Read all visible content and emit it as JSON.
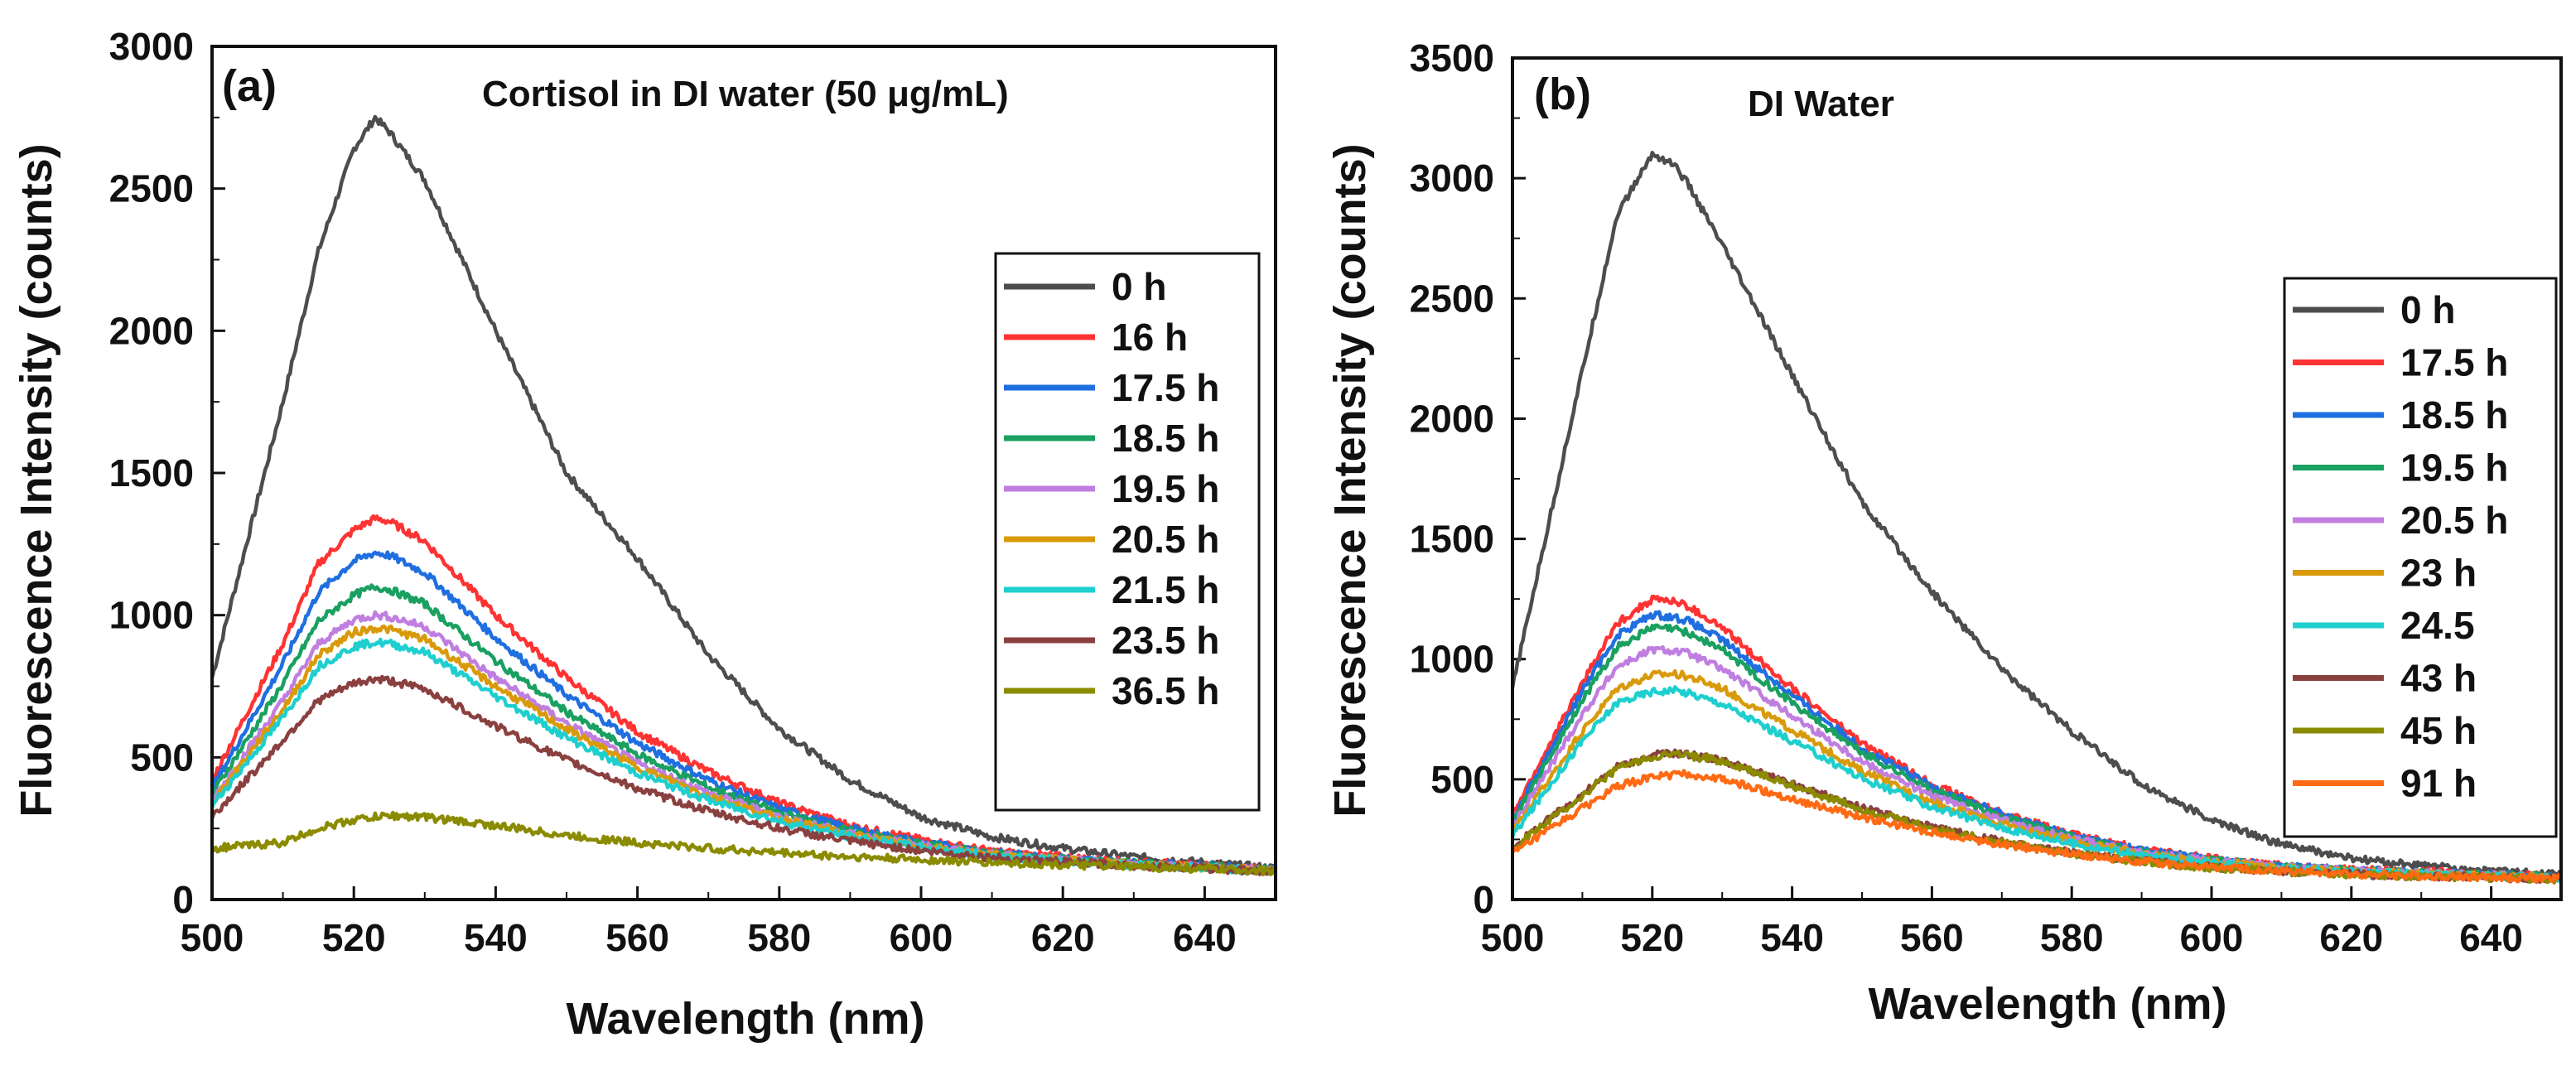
{
  "chart_data": [
    {
      "type": "line",
      "panel": "(a)",
      "title": "Cortisol in DI water (50 μg/mL)",
      "xlabel": "Wavelength (nm)",
      "ylabel": "Fluorescence Intensity (counts)",
      "xlim": [
        500,
        650
      ],
      "ylim": [
        0,
        3000
      ],
      "xticks": [
        500,
        520,
        540,
        560,
        580,
        600,
        620,
        640
      ],
      "yticks": [
        0,
        500,
        1000,
        1500,
        2000,
        2500,
        3000
      ],
      "x": [
        500,
        510,
        515,
        520,
        523,
        525,
        530,
        540,
        550,
        560,
        570,
        580,
        590,
        600,
        610,
        620,
        630,
        640,
        650
      ],
      "legend_position": "right",
      "series": [
        {
          "name": "0 h",
          "color": "#4d4d4d",
          "values": [
            780,
            1750,
            2280,
            2640,
            2750,
            2700,
            2530,
            2000,
            1500,
            1200,
            860,
            600,
            420,
            290,
            220,
            180,
            150,
            130,
            110
          ]
        },
        {
          "name": "16 h",
          "color": "#ff3333",
          "values": [
            420,
            900,
            1180,
            1300,
            1340,
            1330,
            1260,
            1000,
            780,
            590,
            450,
            340,
            260,
            210,
            170,
            150,
            130,
            120,
            105
          ]
        },
        {
          "name": "17.5 h",
          "color": "#1f6fe0",
          "values": [
            390,
            830,
            1080,
            1190,
            1220,
            1210,
            1150,
            920,
            720,
            550,
            420,
            320,
            250,
            200,
            165,
            145,
            128,
            118,
            103
          ]
        },
        {
          "name": "18.5 h",
          "color": "#1aa060",
          "values": [
            370,
            760,
            980,
            1070,
            1100,
            1090,
            1040,
            840,
            660,
            510,
            395,
            305,
            240,
            195,
            162,
            142,
            126,
            116,
            102
          ]
        },
        {
          "name": "19.5 h",
          "color": "#c07fe0",
          "values": [
            350,
            700,
            900,
            985,
            1000,
            995,
            960,
            780,
            620,
            480,
            375,
            292,
            232,
            190,
            158,
            140,
            124,
            114,
            101
          ]
        },
        {
          "name": "20.5 h",
          "color": "#d99a0a",
          "values": [
            340,
            670,
            860,
            940,
            955,
            950,
            915,
            750,
            600,
            465,
            365,
            285,
            228,
            187,
            156,
            138,
            123,
            113,
            100
          ]
        },
        {
          "name": "21.5 h",
          "color": "#1fcfcf",
          "values": [
            330,
            640,
            820,
            890,
            905,
            900,
            870,
            715,
            570,
            445,
            350,
            275,
            222,
            183,
            154,
            136,
            122,
            112,
            100
          ]
        },
        {
          "name": "23.5 h",
          "color": "#8b4040",
          "values": [
            290,
            560,
            700,
            760,
            775,
            770,
            740,
            610,
            490,
            390,
            310,
            250,
            205,
            172,
            148,
            132,
            120,
            110,
            98
          ]
        },
        {
          "name": "36.5 h",
          "color": "#8b8b00",
          "values": [
            180,
            200,
            250,
            280,
            290,
            295,
            290,
            260,
            225,
            200,
            180,
            165,
            150,
            140,
            130,
            122,
            115,
            108,
            100
          ]
        }
      ]
    },
    {
      "type": "line",
      "panel": "(b)",
      "title": "DI Water",
      "xlabel": "Wavelength (nm)",
      "ylabel": "Fluorescence Intensity (counts)",
      "xlim": [
        500,
        650
      ],
      "ylim": [
        0,
        3500
      ],
      "xticks": [
        500,
        520,
        540,
        560,
        580,
        600,
        620,
        640
      ],
      "yticks": [
        0,
        500,
        1000,
        1500,
        2000,
        2500,
        3000,
        3500
      ],
      "x": [
        500,
        510,
        515,
        520,
        523,
        525,
        530,
        540,
        550,
        560,
        570,
        580,
        590,
        600,
        610,
        620,
        630,
        640,
        650
      ],
      "legend_position": "right",
      "series": [
        {
          "name": "0 h",
          "color": "#4d4d4d",
          "values": [
            880,
            2200,
            2850,
            3100,
            3060,
            2980,
            2720,
            2180,
            1650,
            1280,
            960,
            700,
            480,
            330,
            230,
            170,
            140,
            120,
            105
          ]
        },
        {
          "name": "17.5 h",
          "color": "#ff3333",
          "values": [
            350,
            900,
            1150,
            1250,
            1240,
            1220,
            1130,
            880,
            650,
            480,
            360,
            270,
            210,
            170,
            140,
            125,
            115,
            105,
            95
          ]
        },
        {
          "name": "18.5 h",
          "color": "#1f6fe0",
          "values": [
            330,
            870,
            1100,
            1185,
            1175,
            1160,
            1080,
            850,
            630,
            470,
            355,
            265,
            205,
            165,
            138,
            122,
            112,
            103,
            93
          ]
        },
        {
          "name": "19.5 h",
          "color": "#1aa060",
          "values": [
            320,
            830,
            1050,
            1130,
            1125,
            1110,
            1040,
            820,
            610,
            455,
            345,
            260,
            200,
            162,
            136,
            120,
            110,
            101,
            92
          ]
        },
        {
          "name": "20.5 h",
          "color": "#c07fe0",
          "values": [
            300,
            770,
            970,
            1040,
            1035,
            1025,
            960,
            765,
            575,
            430,
            330,
            250,
            195,
            158,
            134,
            118,
            108,
            100,
            91
          ]
        },
        {
          "name": "23 h",
          "color": "#d99a0a",
          "values": [
            280,
            700,
            880,
            935,
            940,
            930,
            880,
            705,
            535,
            405,
            315,
            242,
            190,
            155,
            132,
            116,
            106,
            98,
            90
          ]
        },
        {
          "name": "24.5",
          "color": "#1fcfcf",
          "values": [
            265,
            660,
            820,
            865,
            870,
            860,
            815,
            660,
            505,
            385,
            300,
            232,
            183,
            150,
            128,
            113,
            104,
            97,
            89
          ]
        },
        {
          "name": "43 h",
          "color": "#8b4040",
          "values": [
            220,
            440,
            550,
            600,
            610,
            605,
            580,
            480,
            380,
            300,
            240,
            195,
            160,
            135,
            118,
            106,
            98,
            92,
            86
          ]
        },
        {
          "name": "45 h",
          "color": "#8b8b00",
          "values": [
            215,
            430,
            545,
            595,
            605,
            600,
            575,
            475,
            375,
            295,
            237,
            192,
            158,
            133,
            117,
            105,
            97,
            91,
            85
          ]
        },
        {
          "name": "91 h",
          "color": "#ff6a13",
          "values": [
            190,
            380,
            470,
            510,
            520,
            520,
            500,
            420,
            340,
            280,
            230,
            190,
            158,
            135,
            118,
            106,
            98,
            92,
            86
          ]
        }
      ]
    }
  ]
}
